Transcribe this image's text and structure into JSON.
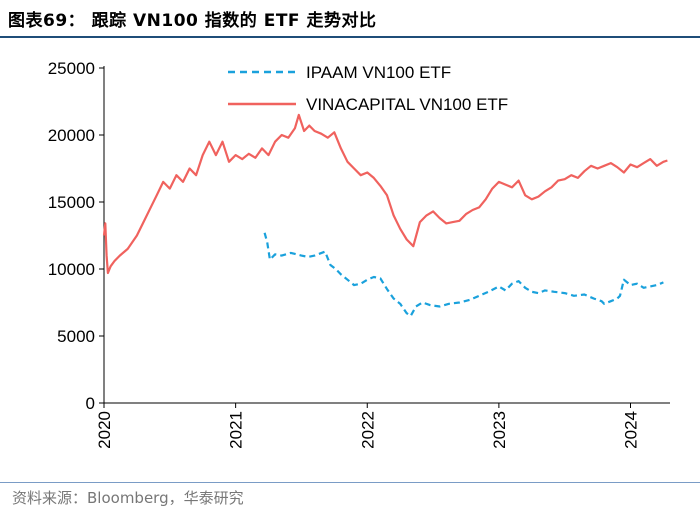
{
  "header": {
    "title": "图表69：  跟踪 VN100 指数的 ETF 走势对比"
  },
  "footer": {
    "source": "资料来源：Bloomberg，华泰研究"
  },
  "colors": {
    "ipaam": "#1aa1dc",
    "vinacapital": "#f0625e",
    "rule": "#1f4e79"
  },
  "chart_data": {
    "type": "line",
    "title": "跟踪 VN100 指数的 ETF 走势对比",
    "xlabel": "",
    "ylabel": "",
    "ylim": [
      0,
      25000
    ],
    "xlim": [
      2020.0,
      2024.3
    ],
    "yticks": [
      0,
      5000,
      10000,
      15000,
      20000,
      25000
    ],
    "xticks": [
      2020,
      2021,
      2022,
      2023,
      2024
    ],
    "legend_position": "top-center",
    "series": [
      {
        "name": "IPAAM VN100 ETF",
        "style": "dashed",
        "x": [
          2021.22,
          2021.24,
          2021.26,
          2021.3,
          2021.35,
          2021.42,
          2021.5,
          2021.55,
          2021.6,
          2021.68,
          2021.72,
          2021.76,
          2021.8,
          2021.85,
          2021.9,
          2021.95,
          2022.0,
          2022.05,
          2022.1,
          2022.15,
          2022.2,
          2022.25,
          2022.3,
          2022.33,
          2022.37,
          2022.42,
          2022.48,
          2022.55,
          2022.62,
          2022.7,
          2022.78,
          2022.85,
          2022.92,
          2023.0,
          2023.05,
          2023.1,
          2023.15,
          2023.2,
          2023.25,
          2023.3,
          2023.35,
          2023.42,
          2023.5,
          2023.57,
          2023.65,
          2023.72,
          2023.78,
          2023.8,
          2023.85,
          2023.9,
          2023.92,
          2023.95,
          2024.0,
          2024.05,
          2024.1,
          2024.15,
          2024.2,
          2024.25
        ],
        "values": [
          12700,
          12000,
          10700,
          11100,
          11000,
          11200,
          11000,
          10900,
          11000,
          11300,
          10300,
          10000,
          9600,
          9200,
          8800,
          8900,
          9200,
          9400,
          9300,
          8500,
          7800,
          7400,
          6700,
          6500,
          7200,
          7500,
          7300,
          7200,
          7400,
          7500,
          7700,
          8000,
          8300,
          8700,
          8400,
          8900,
          9100,
          8600,
          8300,
          8200,
          8400,
          8300,
          8200,
          8000,
          8100,
          7800,
          7600,
          7400,
          7600,
          7800,
          8000,
          9200,
          8800,
          8900,
          8600,
          8700,
          8800,
          9000
        ]
      },
      {
        "name": "VINACAPITAL VN100 ETF",
        "style": "solid",
        "x": [
          2020.0,
          2020.01,
          2020.02,
          2020.03,
          2020.05,
          2020.08,
          2020.12,
          2020.18,
          2020.25,
          2020.3,
          2020.35,
          2020.4,
          2020.45,
          2020.5,
          2020.55,
          2020.6,
          2020.65,
          2020.7,
          2020.75,
          2020.8,
          2020.85,
          2020.9,
          2020.95,
          2021.0,
          2021.05,
          2021.1,
          2021.15,
          2021.2,
          2021.25,
          2021.3,
          2021.35,
          2021.4,
          2021.45,
          2021.48,
          2021.52,
          2021.56,
          2021.6,
          2021.65,
          2021.7,
          2021.75,
          2021.8,
          2021.85,
          2021.9,
          2021.95,
          2022.0,
          2022.05,
          2022.1,
          2022.15,
          2022.2,
          2022.25,
          2022.3,
          2022.35,
          2022.4,
          2022.45,
          2022.5,
          2022.55,
          2022.6,
          2022.65,
          2022.7,
          2022.75,
          2022.8,
          2022.85,
          2022.9,
          2022.95,
          2023.0,
          2023.05,
          2023.1,
          2023.15,
          2023.2,
          2023.25,
          2023.3,
          2023.35,
          2023.4,
          2023.45,
          2023.5,
          2023.55,
          2023.6,
          2023.65,
          2023.7,
          2023.75,
          2023.8,
          2023.85,
          2023.9,
          2023.95,
          2024.0,
          2024.05,
          2024.1,
          2024.15,
          2024.2,
          2024.25,
          2024.28
        ],
        "values": [
          12500,
          13400,
          11000,
          9700,
          10200,
          10600,
          11000,
          11500,
          12500,
          13500,
          14500,
          15500,
          16500,
          16000,
          17000,
          16500,
          17500,
          17000,
          18500,
          19500,
          18500,
          19500,
          18000,
          18500,
          18200,
          18600,
          18300,
          19000,
          18500,
          19500,
          20000,
          19800,
          20500,
          21500,
          20300,
          20700,
          20300,
          20100,
          19800,
          20200,
          19000,
          18000,
          17500,
          17000,
          17200,
          16800,
          16200,
          15500,
          14000,
          13000,
          12200,
          11700,
          13500,
          14000,
          14300,
          13800,
          13400,
          13500,
          13600,
          14100,
          14400,
          14600,
          15200,
          16000,
          16500,
          16300,
          16100,
          16600,
          15500,
          15200,
          15400,
          15800,
          16100,
          16600,
          16700,
          17000,
          16800,
          17300,
          17700,
          17500,
          17700,
          17900,
          17600,
          17200,
          17800,
          17600,
          17900,
          18200,
          17700,
          18000,
          18100
        ]
      }
    ]
  }
}
